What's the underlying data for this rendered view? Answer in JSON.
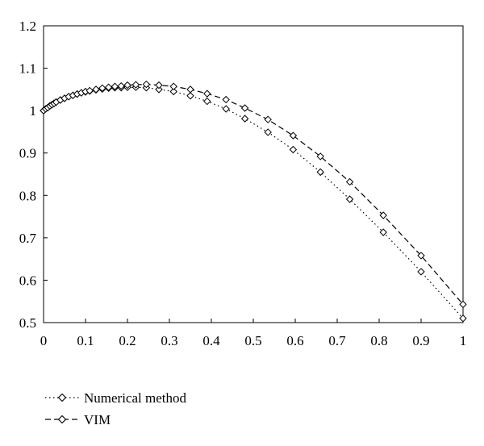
{
  "chart_data": {
    "type": "line",
    "title": "",
    "xlabel": "",
    "ylabel": "",
    "xlim": [
      0,
      1
    ],
    "ylim": [
      0.5,
      1.2
    ],
    "x_ticks": [
      "0",
      "0.1",
      "0.2",
      "0.3",
      "0.4",
      "0.5",
      "0.6",
      "0.7",
      "0.8",
      "0.9",
      "1"
    ],
    "y_ticks": [
      "0.5",
      "0.6",
      "0.7",
      "0.8",
      "0.9",
      "1",
      "1.1",
      "1.2"
    ],
    "grid": false,
    "legend_position": "bottom-left",
    "series": [
      {
        "name": "Numerical method",
        "line_style": "dotted",
        "marker": "diamond",
        "color": "#000000",
        "x": [
          0,
          0.005,
          0.01,
          0.015,
          0.02,
          0.025,
          0.03,
          0.04,
          0.05,
          0.06,
          0.07,
          0.08,
          0.09,
          0.1,
          0.11,
          0.125,
          0.14,
          0.155,
          0.17,
          0.185,
          0.2,
          0.22,
          0.245,
          0.275,
          0.31,
          0.35,
          0.39,
          0.435,
          0.48,
          0.535,
          0.595,
          0.66,
          0.73,
          0.81,
          0.9,
          1.0
        ],
        "y": [
          1.0,
          1.004,
          1.007,
          1.011,
          1.014,
          1.017,
          1.02,
          1.025,
          1.029,
          1.033,
          1.036,
          1.039,
          1.042,
          1.044,
          1.046,
          1.049,
          1.051,
          1.053,
          1.054,
          1.054,
          1.055,
          1.055,
          1.054,
          1.05,
          1.045,
          1.035,
          1.022,
          1.004,
          0.981,
          0.949,
          0.908,
          0.855,
          0.791,
          0.713,
          0.62,
          0.51
        ]
      },
      {
        "name": "VIM",
        "line_style": "dashed",
        "marker": "diamond",
        "color": "#000000",
        "x": [
          0,
          0.005,
          0.01,
          0.015,
          0.02,
          0.025,
          0.03,
          0.04,
          0.05,
          0.06,
          0.07,
          0.08,
          0.09,
          0.1,
          0.11,
          0.125,
          0.14,
          0.155,
          0.17,
          0.185,
          0.2,
          0.22,
          0.245,
          0.275,
          0.31,
          0.35,
          0.39,
          0.435,
          0.48,
          0.535,
          0.595,
          0.66,
          0.73,
          0.81,
          0.9,
          1.0
        ],
        "y": [
          1.0,
          1.004,
          1.007,
          1.011,
          1.014,
          1.017,
          1.02,
          1.025,
          1.029,
          1.033,
          1.036,
          1.039,
          1.042,
          1.045,
          1.047,
          1.05,
          1.053,
          1.055,
          1.057,
          1.058,
          1.06,
          1.061,
          1.062,
          1.06,
          1.057,
          1.05,
          1.04,
          1.026,
          1.006,
          0.979,
          0.941,
          0.892,
          0.832,
          0.753,
          0.658,
          0.543
        ]
      }
    ]
  }
}
